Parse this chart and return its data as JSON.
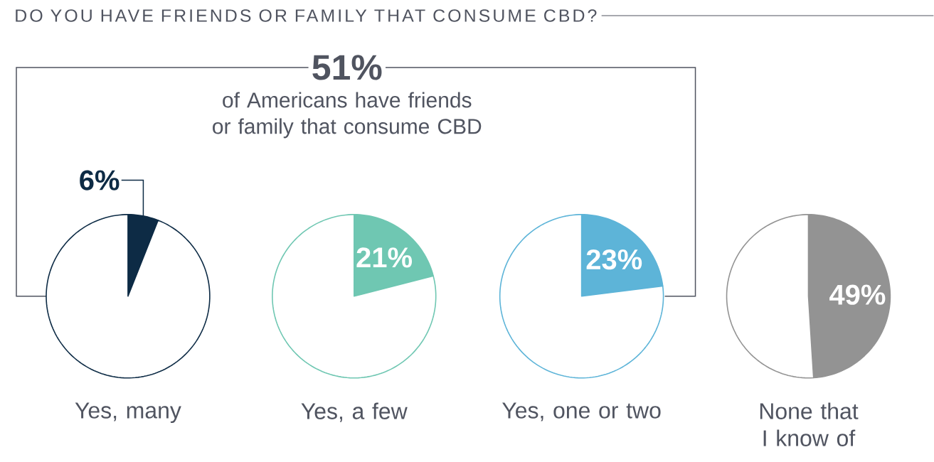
{
  "chart_data": [
    {
      "type": "other",
      "title": "DO YOU HAVE FRIENDS OR FAMILY THAT CONSUME CBD?",
      "annotations": [
        "51%",
        "of Americans have friends or family that consume CBD"
      ]
    },
    {
      "type": "pie",
      "title": "Yes, many",
      "categories": [
        null,
        null
      ],
      "values": [
        6,
        94
      ],
      "colors": [
        "#0d2b45",
        "#ffffff"
      ],
      "value_labels": [
        "6%",
        null
      ]
    },
    {
      "type": "pie",
      "title": "Yes, a few",
      "categories": [
        null,
        null
      ],
      "values": [
        21,
        79
      ],
      "colors": [
        "#6fc7b2",
        "#ffffff"
      ],
      "value_labels": [
        "21%",
        null
      ]
    },
    {
      "type": "pie",
      "title": "Yes, one or two",
      "categories": [
        null,
        null
      ],
      "values": [
        23,
        77
      ],
      "colors": [
        "#5db4d8",
        "#ffffff"
      ],
      "value_labels": [
        "23%",
        null
      ]
    },
    {
      "type": "pie",
      "title": "None that I know of",
      "categories": [
        null,
        null
      ],
      "values": [
        49,
        51
      ],
      "colors": [
        "#939393",
        "#ffffff"
      ],
      "value_labels": [
        "49%",
        null
      ]
    }
  ]
}
